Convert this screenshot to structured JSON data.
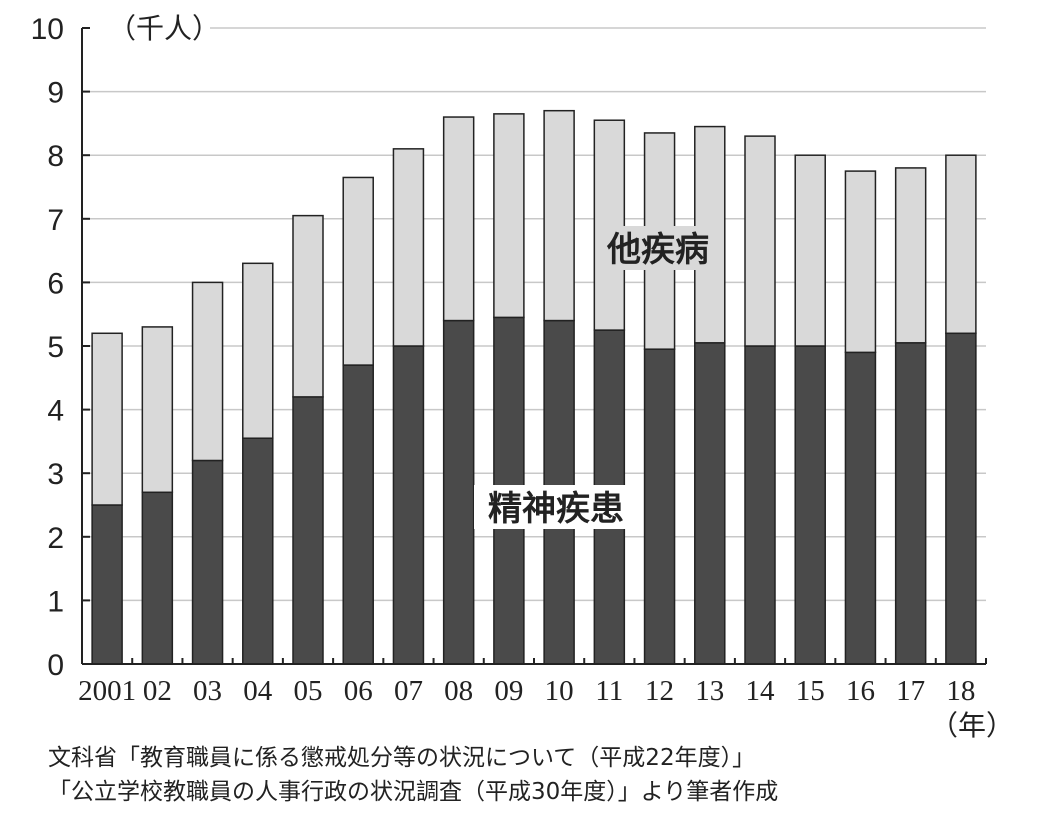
{
  "chart_data": {
    "type": "bar",
    "stacked": true,
    "categories": [
      "2001",
      "02",
      "03",
      "04",
      "05",
      "06",
      "07",
      "08",
      "09",
      "10",
      "11",
      "12",
      "13",
      "14",
      "15",
      "16",
      "17",
      "18"
    ],
    "series": [
      {
        "name": "精神疾患",
        "color": "#4a4a4a",
        "values": [
          2.5,
          2.7,
          3.2,
          3.55,
          4.2,
          4.7,
          5.0,
          5.4,
          5.45,
          5.4,
          5.25,
          4.95,
          5.05,
          5.0,
          5.0,
          4.9,
          5.05,
          5.2
        ]
      },
      {
        "name": "他疾病",
        "color": "#d9d9d9",
        "values": [
          2.7,
          2.6,
          2.8,
          2.75,
          2.85,
          2.95,
          3.1,
          3.2,
          3.2,
          3.3,
          3.3,
          3.4,
          3.4,
          3.3,
          3.0,
          2.85,
          2.75,
          2.8
        ]
      }
    ],
    "ylim": [
      0,
      10
    ],
    "yticks": [
      0,
      1,
      2,
      3,
      4,
      5,
      6,
      7,
      8,
      9,
      10
    ],
    "y_unit": "（千人）",
    "x_unit": "（年）",
    "grid": true
  },
  "source": {
    "line1": "文科省「教育職員に係る懲戒処分等の状況について（平成22年度）」",
    "line2": "「公立学校教職員の人事行政の状況調査（平成30年度）」より筆者作成"
  }
}
